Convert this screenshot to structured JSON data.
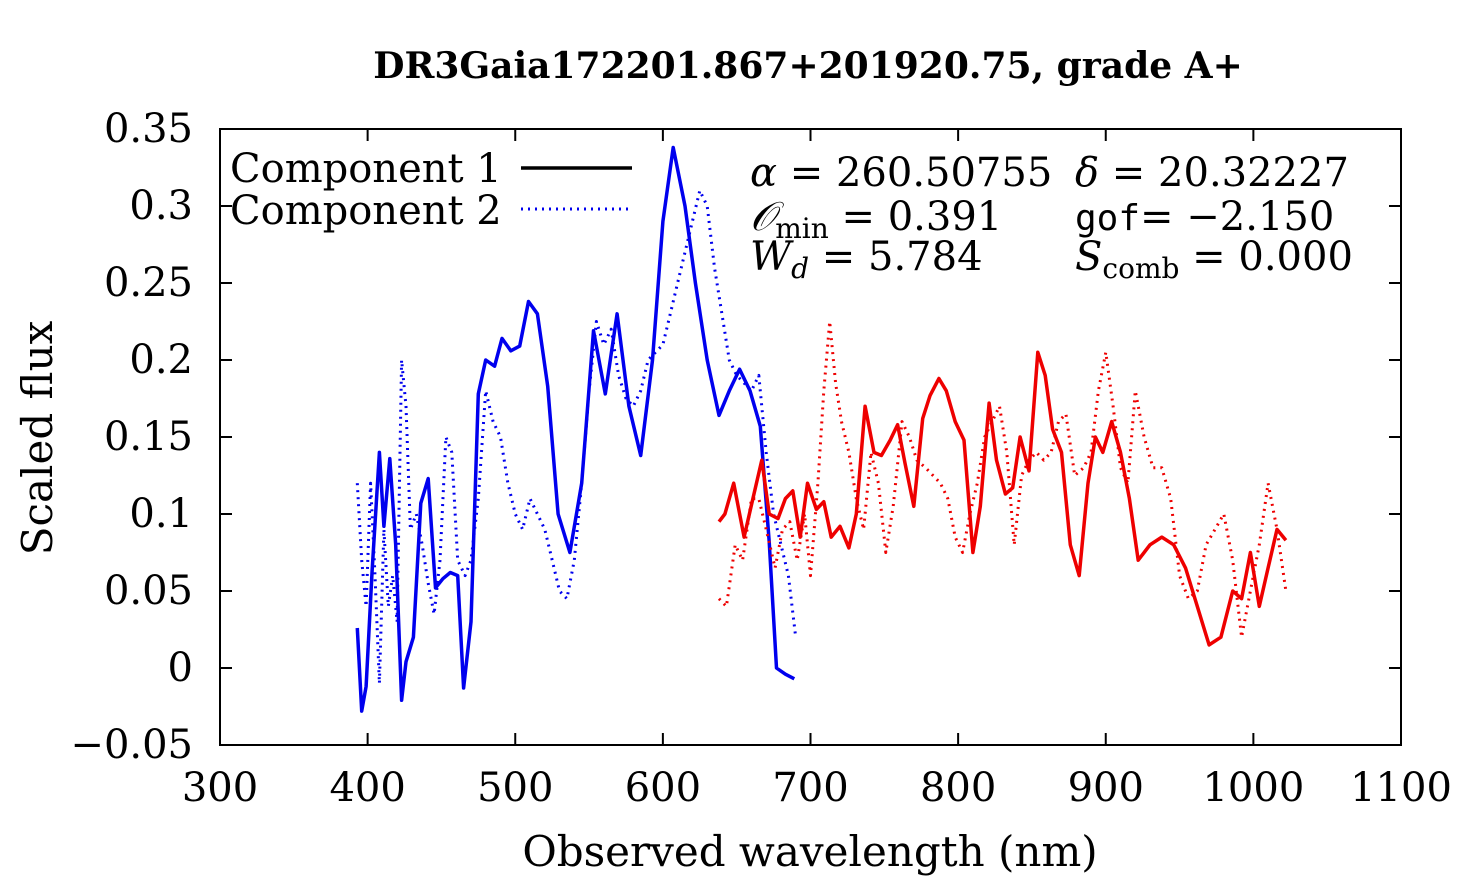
{
  "chart_data": {
    "type": "line",
    "title": "DR3Gaia172201.867+201920.75, grade A+",
    "xlabel": "Observed wavelength (nm)",
    "ylabel": "Scaled flux",
    "xlim": [
      300,
      1100
    ],
    "ylim": [
      -0.05,
      0.35
    ],
    "x_ticks": [
      300,
      400,
      500,
      600,
      700,
      800,
      900,
      1000,
      1100
    ],
    "y_ticks": [
      -0.05,
      0,
      0.05,
      0.1,
      0.15,
      0.2,
      0.25,
      0.3,
      0.35
    ],
    "y_tick_labels": [
      "−0.05",
      "0",
      "0.05",
      "0.1",
      "0.15",
      "0.2",
      "0.25",
      "0.3",
      "0.35"
    ],
    "grid": false,
    "legend_position": "top-left",
    "legend": [
      {
        "label": "Component 1",
        "style": "solid"
      },
      {
        "label": "Component 2",
        "style": "dotted"
      }
    ],
    "annotations": {
      "alpha": {
        "symbol": "α",
        "value": "260.50755"
      },
      "delta": {
        "symbol": "δ",
        "value": "20.32227"
      },
      "omin": {
        "symbol": "𝒪",
        "sub": "min",
        "value": "0.391"
      },
      "gof": {
        "symbol": "gof",
        "value": "−2.150"
      },
      "wd": {
        "symbol": "W",
        "sub": "d",
        "value": "5.784"
      },
      "scomb": {
        "symbol": "S",
        "sub": "comb",
        "value": "0.000"
      }
    },
    "series": [
      {
        "name": "Component 1 (blue)",
        "color": "#0000ee",
        "style": "solid",
        "x": [
          393,
          396,
          399,
          403,
          408,
          411,
          415,
          419,
          423,
          426,
          431,
          436,
          441,
          446,
          451,
          456,
          461,
          465,
          470,
          475,
          480,
          486,
          491,
          497,
          503,
          509,
          515,
          522,
          529,
          537,
          545,
          553,
          561,
          569,
          577,
          585,
          593,
          600,
          607,
          615,
          622,
          630,
          638,
          645,
          652,
          659,
          666,
          672,
          677,
          683,
          689
        ],
        "y": [
          0.026,
          -0.028,
          -0.012,
          0.063,
          0.14,
          0.092,
          0.136,
          0.08,
          -0.021,
          0.004,
          0.02,
          0.107,
          0.123,
          0.052,
          0.058,
          0.062,
          0.06,
          -0.013,
          0.03,
          0.178,
          0.2,
          0.196,
          0.214,
          0.206,
          0.209,
          0.238,
          0.23,
          0.183,
          0.1,
          0.075,
          0.12,
          0.219,
          0.178,
          0.23,
          0.17,
          0.138,
          0.2,
          0.29,
          0.338,
          0.3,
          0.25,
          0.2,
          0.164,
          0.18,
          0.194,
          0.18,
          0.157,
          0.082,
          0.0,
          -0.004,
          -0.007
        ]
      },
      {
        "name": "Component 2 (blue)",
        "color": "#0000ee",
        "style": "dotted",
        "x": [
          393,
          396,
          399,
          402,
          405,
          408,
          411,
          414,
          417,
          420,
          423,
          426,
          429,
          433,
          437,
          441,
          445,
          449,
          453,
          457,
          461,
          466,
          470,
          475,
          480,
          485,
          490,
          495,
          500,
          505,
          510,
          515,
          520,
          525,
          530,
          535,
          540,
          545,
          550,
          555,
          560,
          565,
          570,
          575,
          580,
          585,
          590,
          595,
          600,
          605,
          610,
          615,
          620,
          625,
          630,
          635,
          640,
          645,
          650,
          655,
          660,
          665,
          670,
          675,
          680,
          685,
          690
        ],
        "y": [
          0.12,
          0.07,
          0.04,
          0.12,
          0.06,
          -0.01,
          0.09,
          0.04,
          0.06,
          0.03,
          0.2,
          0.17,
          0.09,
          0.1,
          0.08,
          0.055,
          0.035,
          0.07,
          0.15,
          0.14,
          0.07,
          0.06,
          0.07,
          0.11,
          0.18,
          0.16,
          0.15,
          0.12,
          0.1,
          0.09,
          0.11,
          0.1,
          0.09,
          0.07,
          0.05,
          0.045,
          0.07,
          0.12,
          0.18,
          0.225,
          0.21,
          0.22,
          0.19,
          0.175,
          0.17,
          0.18,
          0.2,
          0.205,
          0.21,
          0.23,
          0.25,
          0.27,
          0.29,
          0.31,
          0.3,
          0.26,
          0.23,
          0.2,
          0.19,
          0.185,
          0.18,
          0.19,
          0.14,
          0.1,
          0.08,
          0.06,
          0.02
        ]
      },
      {
        "name": "Component 1 (red)",
        "color": "#ee0000",
        "style": "solid",
        "x": [
          638,
          642,
          648,
          655,
          661,
          667,
          672,
          678,
          683,
          688,
          693,
          698,
          704,
          709,
          714,
          720,
          726,
          731,
          737,
          743,
          748,
          754,
          759,
          764,
          770,
          776,
          781,
          787,
          792,
          798,
          804,
          810,
          815,
          821,
          826,
          832,
          837,
          842,
          848,
          854,
          859,
          864,
          870,
          876,
          882,
          888,
          893,
          898,
          904,
          910,
          916,
          922,
          930,
          938,
          946,
          954,
          962,
          970,
          978,
          986,
          992,
          998,
          1004,
          1010,
          1016,
          1022
        ],
        "y": [
          0.095,
          0.1,
          0.12,
          0.085,
          0.11,
          0.135,
          0.1,
          0.097,
          0.11,
          0.115,
          0.085,
          0.12,
          0.103,
          0.108,
          0.085,
          0.092,
          0.078,
          0.1,
          0.17,
          0.14,
          0.138,
          0.148,
          0.158,
          0.133,
          0.105,
          0.162,
          0.177,
          0.188,
          0.18,
          0.16,
          0.148,
          0.075,
          0.105,
          0.172,
          0.135,
          0.113,
          0.117,
          0.15,
          0.128,
          0.205,
          0.19,
          0.155,
          0.14,
          0.08,
          0.06,
          0.12,
          0.15,
          0.14,
          0.16,
          0.14,
          0.11,
          0.07,
          0.08,
          0.085,
          0.08,
          0.065,
          0.04,
          0.015,
          0.02,
          0.05,
          0.045,
          0.075,
          0.04,
          0.065,
          0.09,
          0.083
        ]
      },
      {
        "name": "Component 2 (red)",
        "color": "#ee0000",
        "style": "dotted",
        "x": [
          638,
          643,
          649,
          654,
          660,
          665,
          670,
          676,
          681,
          686,
          691,
          696,
          700,
          705,
          709,
          713,
          717,
          721,
          726,
          731,
          736,
          741,
          746,
          751,
          756,
          762,
          767,
          772,
          778,
          783,
          788,
          793,
          798,
          803,
          808,
          813,
          818,
          823,
          828,
          833,
          838,
          843,
          848,
          853,
          858,
          863,
          868,
          873,
          879,
          885,
          890,
          895,
          900,
          905,
          910,
          915,
          920,
          926,
          932,
          938,
          944,
          950,
          956,
          962,
          968,
          974,
          980,
          986,
          992,
          998,
          1004,
          1010,
          1016,
          1022
        ],
        "y": [
          0.045,
          0.04,
          0.08,
          0.07,
          0.11,
          0.11,
          0.09,
          0.065,
          0.09,
          0.095,
          0.07,
          0.1,
          0.06,
          0.12,
          0.18,
          0.225,
          0.185,
          0.16,
          0.14,
          0.11,
          0.09,
          0.14,
          0.12,
          0.075,
          0.105,
          0.16,
          0.15,
          0.135,
          0.13,
          0.125,
          0.12,
          0.11,
          0.085,
          0.075,
          0.1,
          0.12,
          0.15,
          0.16,
          0.17,
          0.14,
          0.08,
          0.125,
          0.135,
          0.14,
          0.135,
          0.14,
          0.16,
          0.165,
          0.125,
          0.13,
          0.14,
          0.18,
          0.205,
          0.17,
          0.13,
          0.12,
          0.18,
          0.15,
          0.13,
          0.13,
          0.11,
          0.06,
          0.045,
          0.05,
          0.08,
          0.09,
          0.1,
          0.07,
          0.02,
          0.05,
          0.08,
          0.12,
          0.09,
          0.05
        ]
      }
    ]
  }
}
